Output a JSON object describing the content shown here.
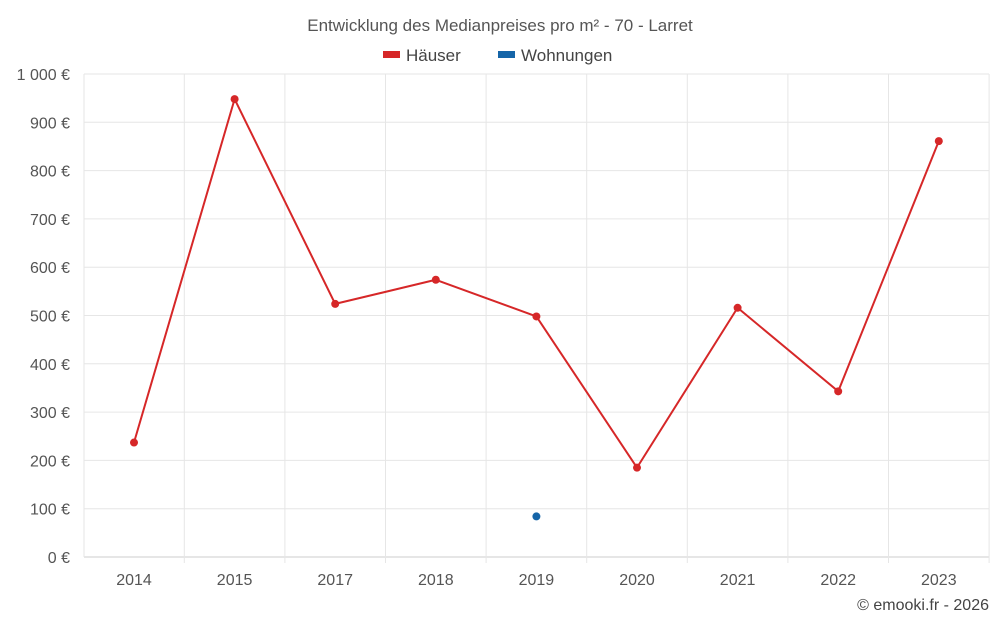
{
  "chart_data": {
    "type": "line",
    "title": "Entwicklung des Medianpreises pro m² - 70 - Larret",
    "xlabel": "",
    "ylabel": "",
    "categories": [
      "2014",
      "2015",
      "2017",
      "2018",
      "2019",
      "2020",
      "2021",
      "2022",
      "2023"
    ],
    "y_ticks": [
      "0 €",
      "100 €",
      "200 €",
      "300 €",
      "400 €",
      "500 €",
      "600 €",
      "700 €",
      "800 €",
      "900 €",
      "1 000 €"
    ],
    "ylim": [
      0,
      1000
    ],
    "grid": true,
    "legend_position": "top-center",
    "series": [
      {
        "name": "Häuser",
        "color": "#d62728",
        "values": [
          237,
          948,
          524,
          574,
          498,
          185,
          516,
          343,
          861
        ]
      },
      {
        "name": "Wohnungen",
        "color": "#1565a8",
        "values": [
          null,
          null,
          null,
          null,
          84,
          null,
          null,
          null,
          null
        ]
      }
    ]
  },
  "footer": {
    "copyright": "© emooki.fr - 2026"
  }
}
